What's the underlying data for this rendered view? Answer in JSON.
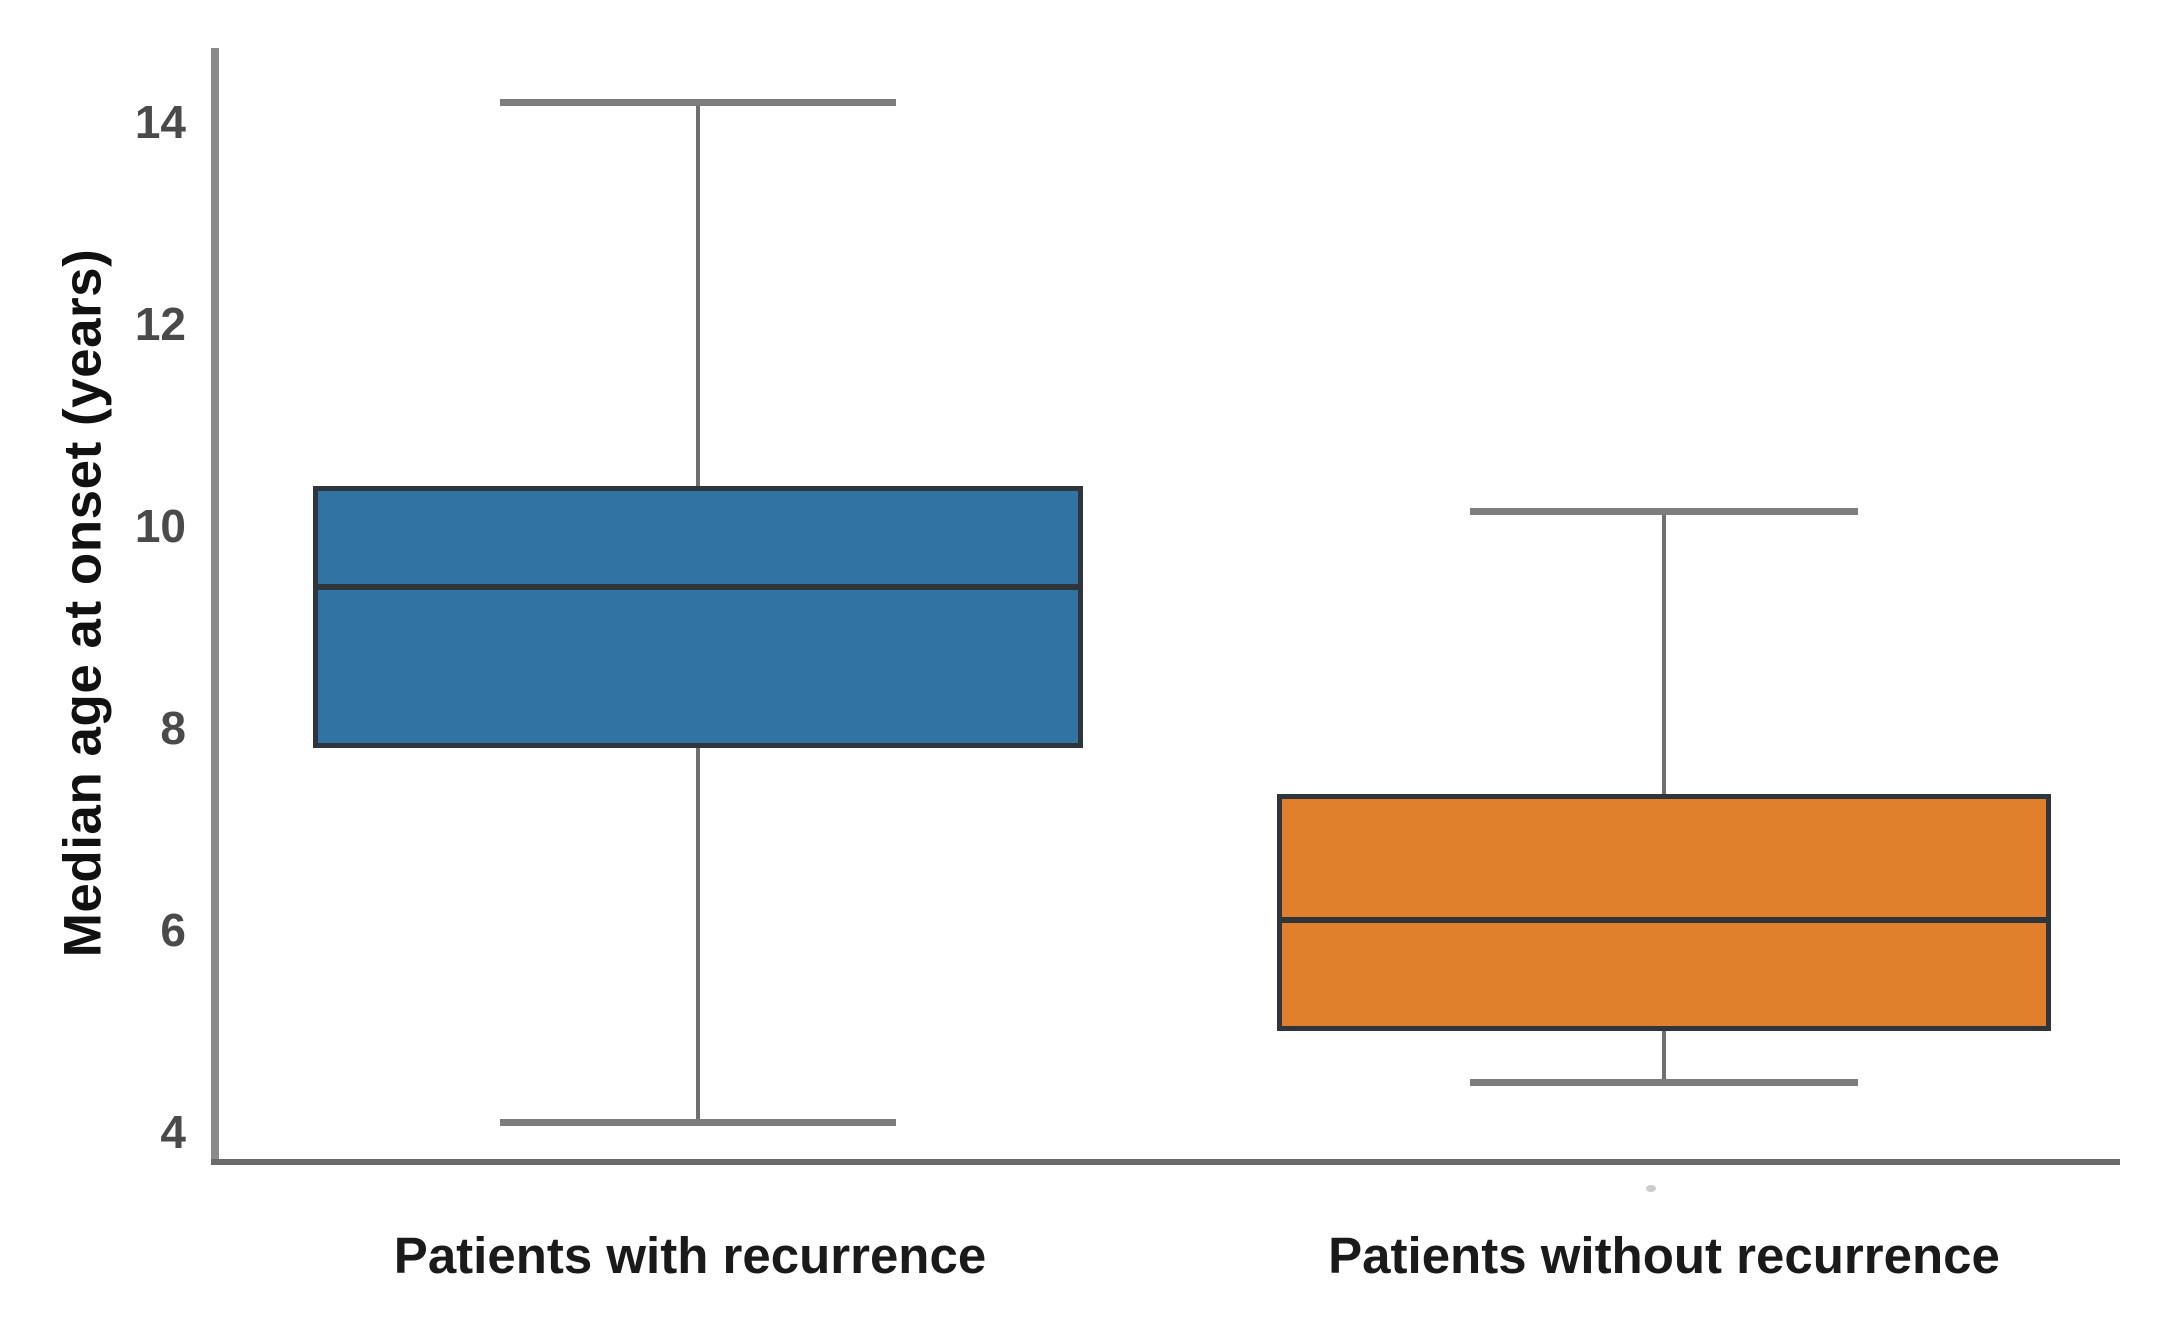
{
  "figure": {
    "background": "#ffffff"
  },
  "chart_data": {
    "type": "boxplot",
    "title": "",
    "ylabel": "Median age at onset (years)",
    "xlabel": "",
    "categories": [
      "Patients with recurrence",
      "Patients without recurrence"
    ],
    "y_ticks": [
      14,
      12,
      10,
      8,
      6,
      4
    ],
    "ylim": [
      3.7,
      14.7
    ],
    "grid": false,
    "legend": false,
    "series": [
      {
        "name": "Patients with recurrence",
        "color": "#3173A3",
        "whisker_low": 4.1,
        "q1": 7.8,
        "median": 9.4,
        "q3": 10.4,
        "whisker_high": 14.2
      },
      {
        "name": "Patients without recurrence",
        "color": "#E0802C",
        "whisker_low": 4.5,
        "q1": 5.0,
        "median": 6.1,
        "q3": 7.35,
        "whisker_high": 10.15
      }
    ],
    "colors": {
      "axis_line": "#8a8a8a",
      "whisker": "#6f6f6f",
      "whisker_cap": "#7d7d7d",
      "box_edge": "#2f353b",
      "tick_label": "#4a4a4a",
      "category_label": "#1a1a1a",
      "ylabel_text": "#111111"
    }
  }
}
